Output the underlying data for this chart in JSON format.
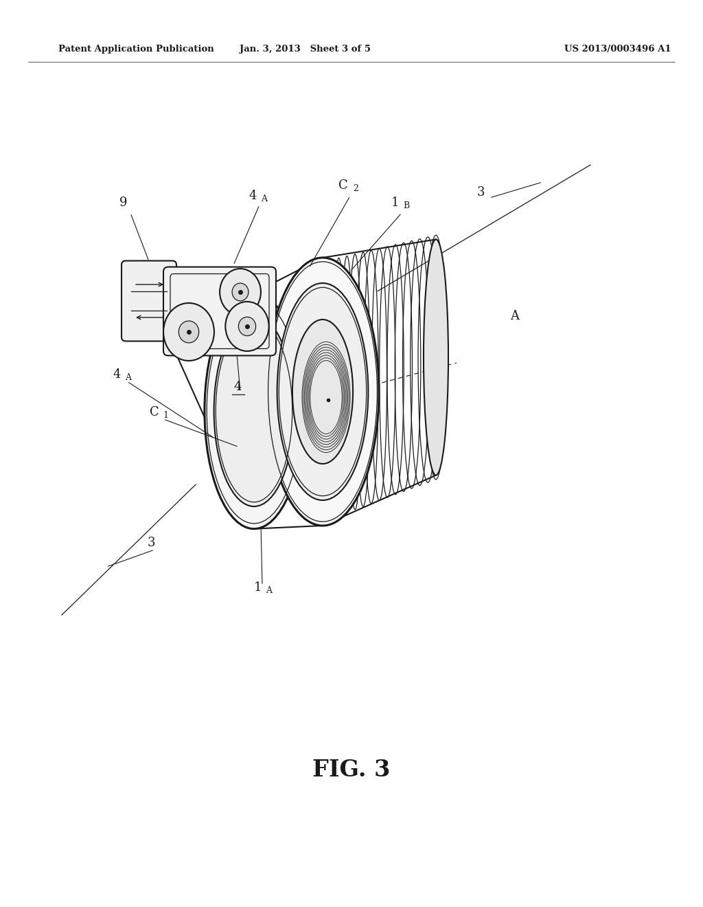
{
  "bg_color": "#ffffff",
  "line_color": "#1a1a1a",
  "header_left": "Patent Application Publication",
  "header_center": "Jan. 3, 2013   Sheet 3 of 5",
  "header_right": "US 2013/0003496 A1",
  "figure_label": "FIG. 3",
  "header_fontsize": 9.5,
  "fig_label_fontsize": 24,
  "label_fontsize": 13,
  "sub_fontsize": 9
}
